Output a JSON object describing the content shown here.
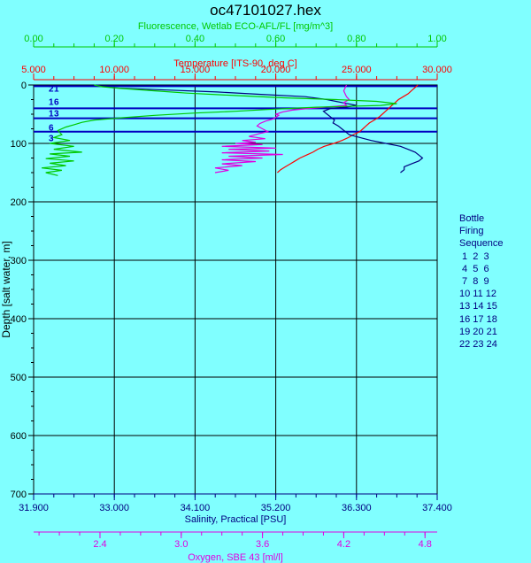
{
  "chart_data": {
    "type": "line",
    "title": "oc47101027.hex",
    "axes": {
      "fluorescence": {
        "label": "Fluorescence, Wetlab ECO-AFL/FL [mg/m^3]",
        "range": [
          0.0,
          1.0
        ],
        "ticks": [
          "0.00",
          "0.20",
          "0.40",
          "0.60",
          "0.80",
          "1.00"
        ],
        "color": "#00c800"
      },
      "temperature": {
        "label": "Temperature [ITS-90, deg C]",
        "range": [
          5.0,
          30.0
        ],
        "ticks": [
          "5.000",
          "10.000",
          "15.000",
          "20.000",
          "25.000",
          "30.000"
        ],
        "color": "#ff0000"
      },
      "salinity": {
        "label": "Salinity, Practical [PSU]",
        "range": [
          31.9,
          37.4
        ],
        "ticks": [
          "31.900",
          "33.000",
          "34.100",
          "35.200",
          "36.300",
          "37.400"
        ],
        "color": "#000080"
      },
      "oxygen": {
        "label": "Oxygen, SBE 43 [ml/l]",
        "range": [
          1.91,
          4.89
        ],
        "ticks": [
          "2.4",
          "3.0",
          "3.6",
          "4.2",
          "4.8"
        ],
        "tick_values": [
          2.4,
          3.0,
          3.6,
          4.2,
          4.8
        ],
        "color": "#e000e0"
      },
      "depth": {
        "label": "Depth [salt water, m]",
        "range": [
          0,
          700
        ],
        "ticks": [
          "0",
          "100",
          "200",
          "300",
          "400",
          "500",
          "600",
          "700"
        ]
      }
    },
    "series": [
      {
        "name": "Temperature",
        "axis": "temperature",
        "color": "#ff0000",
        "points": [
          [
            28.8,
            0
          ],
          [
            28.6,
            5
          ],
          [
            28.4,
            10
          ],
          [
            28.2,
            15
          ],
          [
            27.9,
            20
          ],
          [
            27.6,
            25
          ],
          [
            27.4,
            30
          ],
          [
            27.2,
            35
          ],
          [
            27.0,
            40
          ],
          [
            26.8,
            45
          ],
          [
            26.6,
            50
          ],
          [
            26.4,
            55
          ],
          [
            26.1,
            60
          ],
          [
            25.8,
            65
          ],
          [
            25.6,
            70
          ],
          [
            25.4,
            75
          ],
          [
            25.2,
            80
          ],
          [
            24.8,
            85
          ],
          [
            24.5,
            90
          ],
          [
            24.1,
            95
          ],
          [
            23.6,
            100
          ],
          [
            23.0,
            105
          ],
          [
            22.6,
            110
          ],
          [
            22.3,
            115
          ],
          [
            21.9,
            120
          ],
          [
            21.5,
            125
          ],
          [
            21.2,
            130
          ],
          [
            20.9,
            135
          ],
          [
            20.6,
            140
          ],
          [
            20.3,
            145
          ],
          [
            20.1,
            150
          ]
        ]
      },
      {
        "name": "Salinity",
        "axis": "salinity",
        "color": "#000080",
        "points": [
          [
            32.75,
            0
          ],
          [
            33.0,
            5
          ],
          [
            33.6,
            8
          ],
          [
            34.4,
            12
          ],
          [
            35.0,
            16
          ],
          [
            35.6,
            20
          ],
          [
            35.9,
            25
          ],
          [
            36.1,
            30
          ],
          [
            36.3,
            35
          ],
          [
            36.15,
            38
          ],
          [
            35.95,
            40
          ],
          [
            35.85,
            45
          ],
          [
            35.9,
            50
          ],
          [
            35.95,
            55
          ],
          [
            36.0,
            60
          ],
          [
            35.98,
            65
          ],
          [
            36.05,
            70
          ],
          [
            36.1,
            75
          ],
          [
            36.15,
            80
          ],
          [
            36.2,
            85
          ],
          [
            36.35,
            90
          ],
          [
            36.5,
            95
          ],
          [
            36.7,
            100
          ],
          [
            36.9,
            105
          ],
          [
            37.0,
            110
          ],
          [
            37.1,
            115
          ],
          [
            37.15,
            120
          ],
          [
            37.2,
            125
          ],
          [
            37.15,
            130
          ],
          [
            37.05,
            135
          ],
          [
            36.95,
            140
          ],
          [
            36.95,
            145
          ],
          [
            36.9,
            150
          ]
        ]
      },
      {
        "name": "Oxygen",
        "axis": "oxygen",
        "color": "#e000e0",
        "points": [
          [
            4.22,
            0
          ],
          [
            4.2,
            10
          ],
          [
            4.22,
            20
          ],
          [
            4.24,
            25
          ],
          [
            4.2,
            30
          ],
          [
            4.22,
            35
          ],
          [
            4.05,
            38
          ],
          [
            3.95,
            40
          ],
          [
            3.82,
            43
          ],
          [
            3.75,
            46
          ],
          [
            3.7,
            50
          ],
          [
            3.72,
            52
          ],
          [
            3.68,
            58
          ],
          [
            3.62,
            62
          ],
          [
            3.58,
            66
          ],
          [
            3.56,
            70
          ],
          [
            3.6,
            75
          ],
          [
            3.64,
            80
          ],
          [
            3.58,
            83
          ],
          [
            3.55,
            85
          ],
          [
            3.5,
            88
          ],
          [
            3.62,
            92
          ],
          [
            3.45,
            95
          ],
          [
            3.55,
            98
          ],
          [
            3.4,
            100
          ],
          [
            3.6,
            102
          ],
          [
            3.3,
            105
          ],
          [
            3.7,
            108
          ],
          [
            3.35,
            110
          ],
          [
            3.65,
            113
          ],
          [
            3.3,
            116
          ],
          [
            3.75,
            119
          ],
          [
            3.35,
            122
          ],
          [
            3.6,
            125
          ],
          [
            3.3,
            128
          ],
          [
            3.55,
            131
          ],
          [
            3.3,
            135
          ],
          [
            3.45,
            138
          ],
          [
            3.25,
            142
          ],
          [
            3.35,
            146
          ],
          [
            3.25,
            150
          ]
        ]
      },
      {
        "name": "Fluorescence",
        "axis": "fluorescence",
        "color": "#00c800",
        "points": [
          [
            0.15,
            0
          ],
          [
            0.17,
            3
          ],
          [
            0.22,
            6
          ],
          [
            0.3,
            10
          ],
          [
            0.38,
            14
          ],
          [
            0.5,
            18
          ],
          [
            0.62,
            22
          ],
          [
            0.75,
            25
          ],
          [
            0.85,
            28
          ],
          [
            0.9,
            32
          ],
          [
            0.86,
            35
          ],
          [
            0.7,
            38
          ],
          [
            0.58,
            42
          ],
          [
            0.5,
            45
          ],
          [
            0.4,
            48
          ],
          [
            0.3,
            52
          ],
          [
            0.22,
            56
          ],
          [
            0.15,
            60
          ],
          [
            0.12,
            64
          ],
          [
            0.1,
            68
          ],
          [
            0.08,
            72
          ],
          [
            0.06,
            78
          ],
          [
            0.07,
            85
          ],
          [
            0.05,
            90
          ],
          [
            0.09,
            95
          ],
          [
            0.04,
            100
          ],
          [
            0.1,
            105
          ],
          [
            0.05,
            110
          ],
          [
            0.12,
            115
          ],
          [
            0.04,
            118
          ],
          [
            0.09,
            122
          ],
          [
            0.03,
            126
          ],
          [
            0.1,
            130
          ],
          [
            0.04,
            134
          ],
          [
            0.08,
            138
          ],
          [
            0.02,
            142
          ],
          [
            0.07,
            146
          ],
          [
            0.03,
            150
          ],
          [
            0.06,
            155
          ]
        ]
      }
    ],
    "bottle_lines": {
      "depths": [
        2,
        40,
        57,
        80
      ],
      "color": "#0000c0"
    },
    "bottle_labels": [
      {
        "text": "2",
        "depth": 5
      },
      {
        "text": "1",
        "depth": 5
      },
      {
        "text": "1",
        "depth": 28
      },
      {
        "text": "6",
        "depth": 28
      },
      {
        "text": "1",
        "depth": 48
      },
      {
        "text": "3",
        "depth": 48
      },
      {
        "text": "6",
        "depth": 72
      },
      {
        "text": "3",
        "depth": 90
      }
    ],
    "grid": true,
    "legend": {
      "position": "right",
      "lines": [
        "Bottle",
        "Firing",
        "Sequence",
        " 1  2  3",
        " 4  5  6",
        " 7  8  9",
        "10 11 12",
        "13 14 15",
        "16 17 18",
        "19 20 21",
        "22 23 24"
      ]
    }
  }
}
